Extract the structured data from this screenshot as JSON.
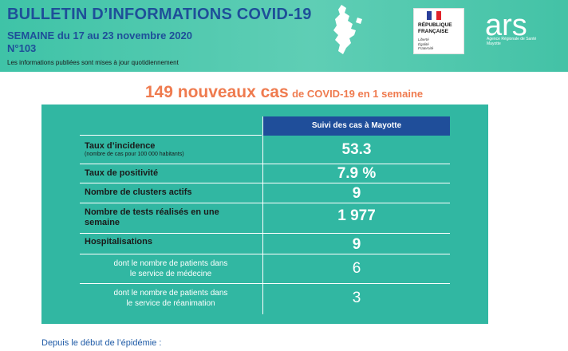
{
  "header": {
    "title": "BULLETIN D’INFORMATIONS COVID-19",
    "week": "SEMAINE du 17 au 23 novembre 2020",
    "number": "N°103",
    "notice": "Les informations publiées sont mises à jour quotidiennement"
  },
  "logos": {
    "republique": [
      "RÉPUBLIQUE",
      "FRANÇAISE"
    ],
    "motto": [
      "Liberté",
      "Égalité",
      "Fraternité"
    ],
    "ars": "ars",
    "ars_sub": [
      "Agence Régionale de Santé",
      "Mayotte"
    ]
  },
  "colors": {
    "header_bg": "#3fc3a7",
    "title": "#1e4f99",
    "headline": "#ef7b4f",
    "panel_bg": "#31b7a2",
    "column_header_bg": "#1f4e9a"
  },
  "headline": {
    "big": "149 nouveaux cas",
    "small": "de COVID-19 en 1 semaine"
  },
  "table": {
    "column_header": "Suivi des cas à Mayotte",
    "rows": [
      {
        "label": "Taux d’incidence",
        "sublabel": "(nombre de cas pour 100 000 habitants)",
        "value": "53.3"
      },
      {
        "label": "Taux de positivité",
        "value": "7.9 %"
      },
      {
        "label": "Nombre de clusters actifs",
        "value": "9"
      },
      {
        "label": "Nombre de tests réalisés en une",
        "label2": "semaine",
        "value": "1 977"
      },
      {
        "label": "Hospitalisations",
        "value": "9"
      },
      {
        "label": "dont le nombre de patients dans",
        "label2": "le service de médecine",
        "value": "6"
      },
      {
        "label": "dont le nombre de patients dans",
        "label2": "le service de réanimation",
        "value": "3"
      }
    ]
  },
  "footer": "Depuis le début de l’épidémie :"
}
